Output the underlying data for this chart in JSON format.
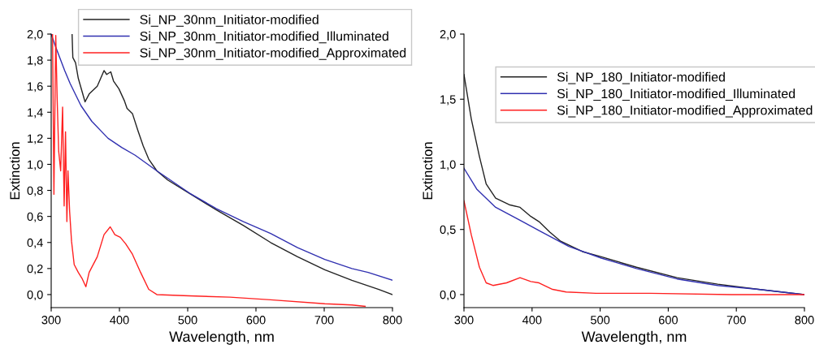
{
  "chart_data": [
    {
      "type": "line",
      "xlabel": "Wavelength, nm",
      "ylabel": "Extinction",
      "xlim": [
        300,
        800
      ],
      "xticks": [
        300,
        400,
        500,
        600,
        700,
        800
      ],
      "ylim": [
        -0.1,
        2.0
      ],
      "yticks": [
        {
          "value": 0.0,
          "label": "0,0"
        },
        {
          "value": 0.2,
          "label": "0,2"
        },
        {
          "value": 0.4,
          "label": "0,4"
        },
        {
          "value": 0.6,
          "label": "0,6"
        },
        {
          "value": 0.8,
          "label": "0,8"
        },
        {
          "value": 1.0,
          "label": "1,0"
        },
        {
          "value": 1.2,
          "label": "1,2"
        },
        {
          "value": 1.4,
          "label": "1,4"
        },
        {
          "value": 1.6,
          "label": "1,6"
        },
        {
          "value": 1.8,
          "label": "1,8"
        },
        {
          "value": 2.0,
          "label": "2,0"
        }
      ],
      "legend": "top",
      "grid": false,
      "series": [
        {
          "name": "Si_NP_30nm_Initiator-modified",
          "color": "#222222",
          "x": [
            330.6,
            331.7,
            335.7,
            339.7,
            349.6,
            355.6,
            367.5,
            377.4,
            381.3,
            387.3,
            391.3,
            399.2,
            407.1,
            411.1,
            419,
            427,
            434.9,
            442.9,
            454.8,
            470.6,
            498.4,
            542,
            581.7,
            621.4,
            661,
            700.8,
            740.5,
            780,
            800
          ],
          "values": [
            2.0,
            1.82,
            1.78,
            1.66,
            1.48,
            1.54,
            1.6,
            1.72,
            1.69,
            1.71,
            1.64,
            1.58,
            1.49,
            1.43,
            1.39,
            1.26,
            1.14,
            1.04,
            0.95,
            0.88,
            0.79,
            0.65,
            0.53,
            0.4,
            0.29,
            0.19,
            0.11,
            0.04,
            0.0
          ]
        },
        {
          "name": "Si_NP_30nm_Initiator-modified_Illuminated",
          "color": "#3030b0",
          "x": [
            300,
            306,
            319.8,
            327.8,
            343.7,
            359.5,
            383.3,
            403.2,
            423,
            454.8,
            502.4,
            542,
            581.7,
            621.4,
            661,
            700.8,
            740.5,
            764.3,
            800
          ],
          "values": [
            2.0,
            1.91,
            1.72,
            1.62,
            1.45,
            1.33,
            1.2,
            1.13,
            1.07,
            0.95,
            0.78,
            0.66,
            0.56,
            0.47,
            0.36,
            0.27,
            0.2,
            0.17,
            0.11
          ]
        },
        {
          "name": "Si_NP_30nm_Initiator-modified_Approximated",
          "color": "#ff2020",
          "x": [
            302,
            304,
            306.7,
            308.7,
            311,
            313.9,
            316.7,
            319,
            321,
            323,
            324.6,
            327,
            329.8,
            333.7,
            339.7,
            345.6,
            350.8,
            355.6,
            367.5,
            377.4,
            386.5,
            393.3,
            401.2,
            409.1,
            419,
            431,
            442.9,
            454.8,
            502.4,
            561.9,
            621.4,
            700.8,
            740.5,
            760
          ],
          "values": [
            2.0,
            0.77,
            1.99,
            1.51,
            1.1,
            0.95,
            1.44,
            0.68,
            1.25,
            0.56,
            0.95,
            0.64,
            0.41,
            0.23,
            0.17,
            0.12,
            0.06,
            0.17,
            0.29,
            0.46,
            0.52,
            0.46,
            0.44,
            0.39,
            0.31,
            0.17,
            0.04,
            0.0,
            -0.01,
            -0.02,
            -0.04,
            -0.07,
            -0.08,
            -0.09
          ]
        }
      ]
    },
    {
      "type": "line",
      "xlabel": "Wavelength, nm",
      "ylabel": "Extinction",
      "xlim": [
        300,
        800
      ],
      "xticks": [
        300,
        400,
        500,
        600,
        700,
        800
      ],
      "ylim": [
        -0.1,
        2.0
      ],
      "yticks": [
        {
          "value": 0.0,
          "label": "0,0"
        },
        {
          "value": 0.5,
          "label": "0,5"
        },
        {
          "value": 1.0,
          "label": "1,0"
        },
        {
          "value": 1.5,
          "label": "1,5"
        },
        {
          "value": 2.0,
          "label": "2,0"
        }
      ],
      "legend": "top right",
      "grid": false,
      "series": [
        {
          "name": "Si_NP_180_Initiator-modified",
          "color": "#222222",
          "x": [
            300,
            310.7,
            322.7,
            332.6,
            346.5,
            366.4,
            382.3,
            398.2,
            410.2,
            426.1,
            442,
            473.8,
            501.7,
            553.4,
            613,
            672.7,
            732.4,
            800
          ],
          "values": [
            1.69,
            1.35,
            1.06,
            0.85,
            0.74,
            0.69,
            0.67,
            0.6,
            0.56,
            0.48,
            0.41,
            0.33,
            0.29,
            0.21,
            0.13,
            0.08,
            0.04,
            0.0
          ]
        },
        {
          "name": "Si_NP_180_Initiator-modified_Illuminated",
          "color": "#3030b0",
          "x": [
            300,
            318.7,
            346.5,
            382.3,
            414.2,
            454,
            501.7,
            553.4,
            613,
            672.7,
            732.4,
            800
          ],
          "values": [
            0.97,
            0.81,
            0.67,
            0.57,
            0.48,
            0.37,
            0.28,
            0.2,
            0.12,
            0.07,
            0.04,
            0.0
          ]
        },
        {
          "name": "Si_NP_180_Initiator-modified_Approximated",
          "color": "#ff2020",
          "x": [
            300,
            310.7,
            322.7,
            332.6,
            342.6,
            362.5,
            382.3,
            398.2,
            410.2,
            430.1,
            450,
            493.7,
            573.3,
            692.7,
            800
          ],
          "values": [
            0.72,
            0.46,
            0.21,
            0.09,
            0.07,
            0.09,
            0.13,
            0.1,
            0.09,
            0.04,
            0.02,
            0.01,
            0.01,
            0.0,
            0.0
          ]
        }
      ]
    }
  ]
}
